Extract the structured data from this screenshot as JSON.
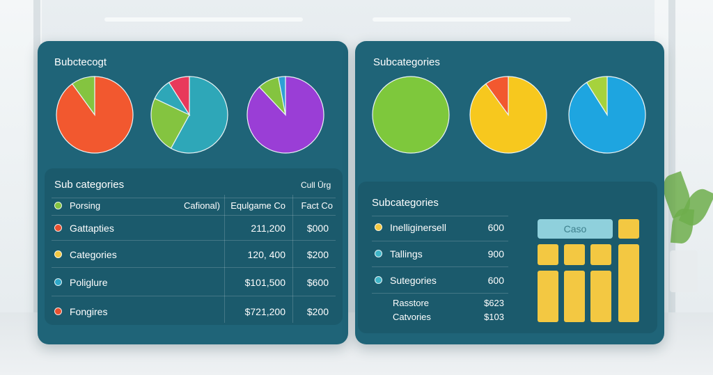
{
  "left_panel": {
    "title": "Bubctecogt",
    "pies": [
      {
        "name": "pie-orange",
        "slices": [
          {
            "value": 90,
            "color": "#f2582f"
          },
          {
            "value": 10,
            "color": "#84c440"
          }
        ]
      },
      {
        "name": "pie-teal",
        "slices": [
          {
            "value": 58,
            "color": "#2ea7b8"
          },
          {
            "value": 24,
            "color": "#84c440"
          },
          {
            "value": 9,
            "color": "#2ea7b8"
          },
          {
            "value": 9,
            "color": "#e8395b"
          }
        ]
      },
      {
        "name": "pie-purple",
        "slices": [
          {
            "value": 88,
            "color": "#9a3ed6"
          },
          {
            "value": 9,
            "color": "#84c440"
          },
          {
            "value": 3,
            "color": "#2e9fd6"
          }
        ]
      }
    ],
    "table": {
      "title": "Sub categories",
      "corner_label": "Cull Ūrg",
      "header": {
        "name": "Porsing",
        "col1": "Cafional)",
        "col2": "Equlgame Co",
        "col3": "Fact Co"
      },
      "rows": [
        {
          "name": "Gattapties",
          "col2": "211,200",
          "col3": "$000",
          "dot": "#e8502f"
        },
        {
          "name": "Categories",
          "col2": "120, 400",
          "col3": "$200",
          "dot": "#f3c842"
        },
        {
          "name": "Poliglure",
          "col2": "$101,500",
          "col3": "$600",
          "dot": "#2ea7c8"
        },
        {
          "name": "Fongires",
          "col2": "$721,200",
          "col3": "$200",
          "dot": "#e8502f"
        }
      ],
      "header_dot": "#84c440"
    }
  },
  "right_panel": {
    "title": "Subcategories",
    "pies": [
      {
        "name": "pie-green",
        "slices": [
          {
            "value": 100,
            "color": "#7ec83c"
          }
        ]
      },
      {
        "name": "pie-yellow",
        "slices": [
          {
            "value": 90,
            "color": "#f7c81e"
          },
          {
            "value": 10,
            "color": "#f2582f"
          }
        ]
      },
      {
        "name": "pie-blue",
        "slices": [
          {
            "value": 91,
            "color": "#1ea5e0"
          },
          {
            "value": 9,
            "color": "#a6d23c"
          }
        ]
      }
    ],
    "list": {
      "title": "Subcategories",
      "rows": [
        {
          "name": "Inelliginersell",
          "value": "600",
          "dot": "#f3c842"
        },
        {
          "name": "Tallings",
          "value": "900",
          "dot": "#3fb5c8"
        },
        {
          "name": "Sutegories",
          "value": "600",
          "dot": "#3fb5c8"
        }
      ],
      "footer": [
        {
          "name": "Rasstore",
          "value": "$623"
        },
        {
          "name": "Catvories",
          "value": "$103"
        }
      ]
    },
    "case_button": "Caso",
    "accent": "#f3c842"
  }
}
